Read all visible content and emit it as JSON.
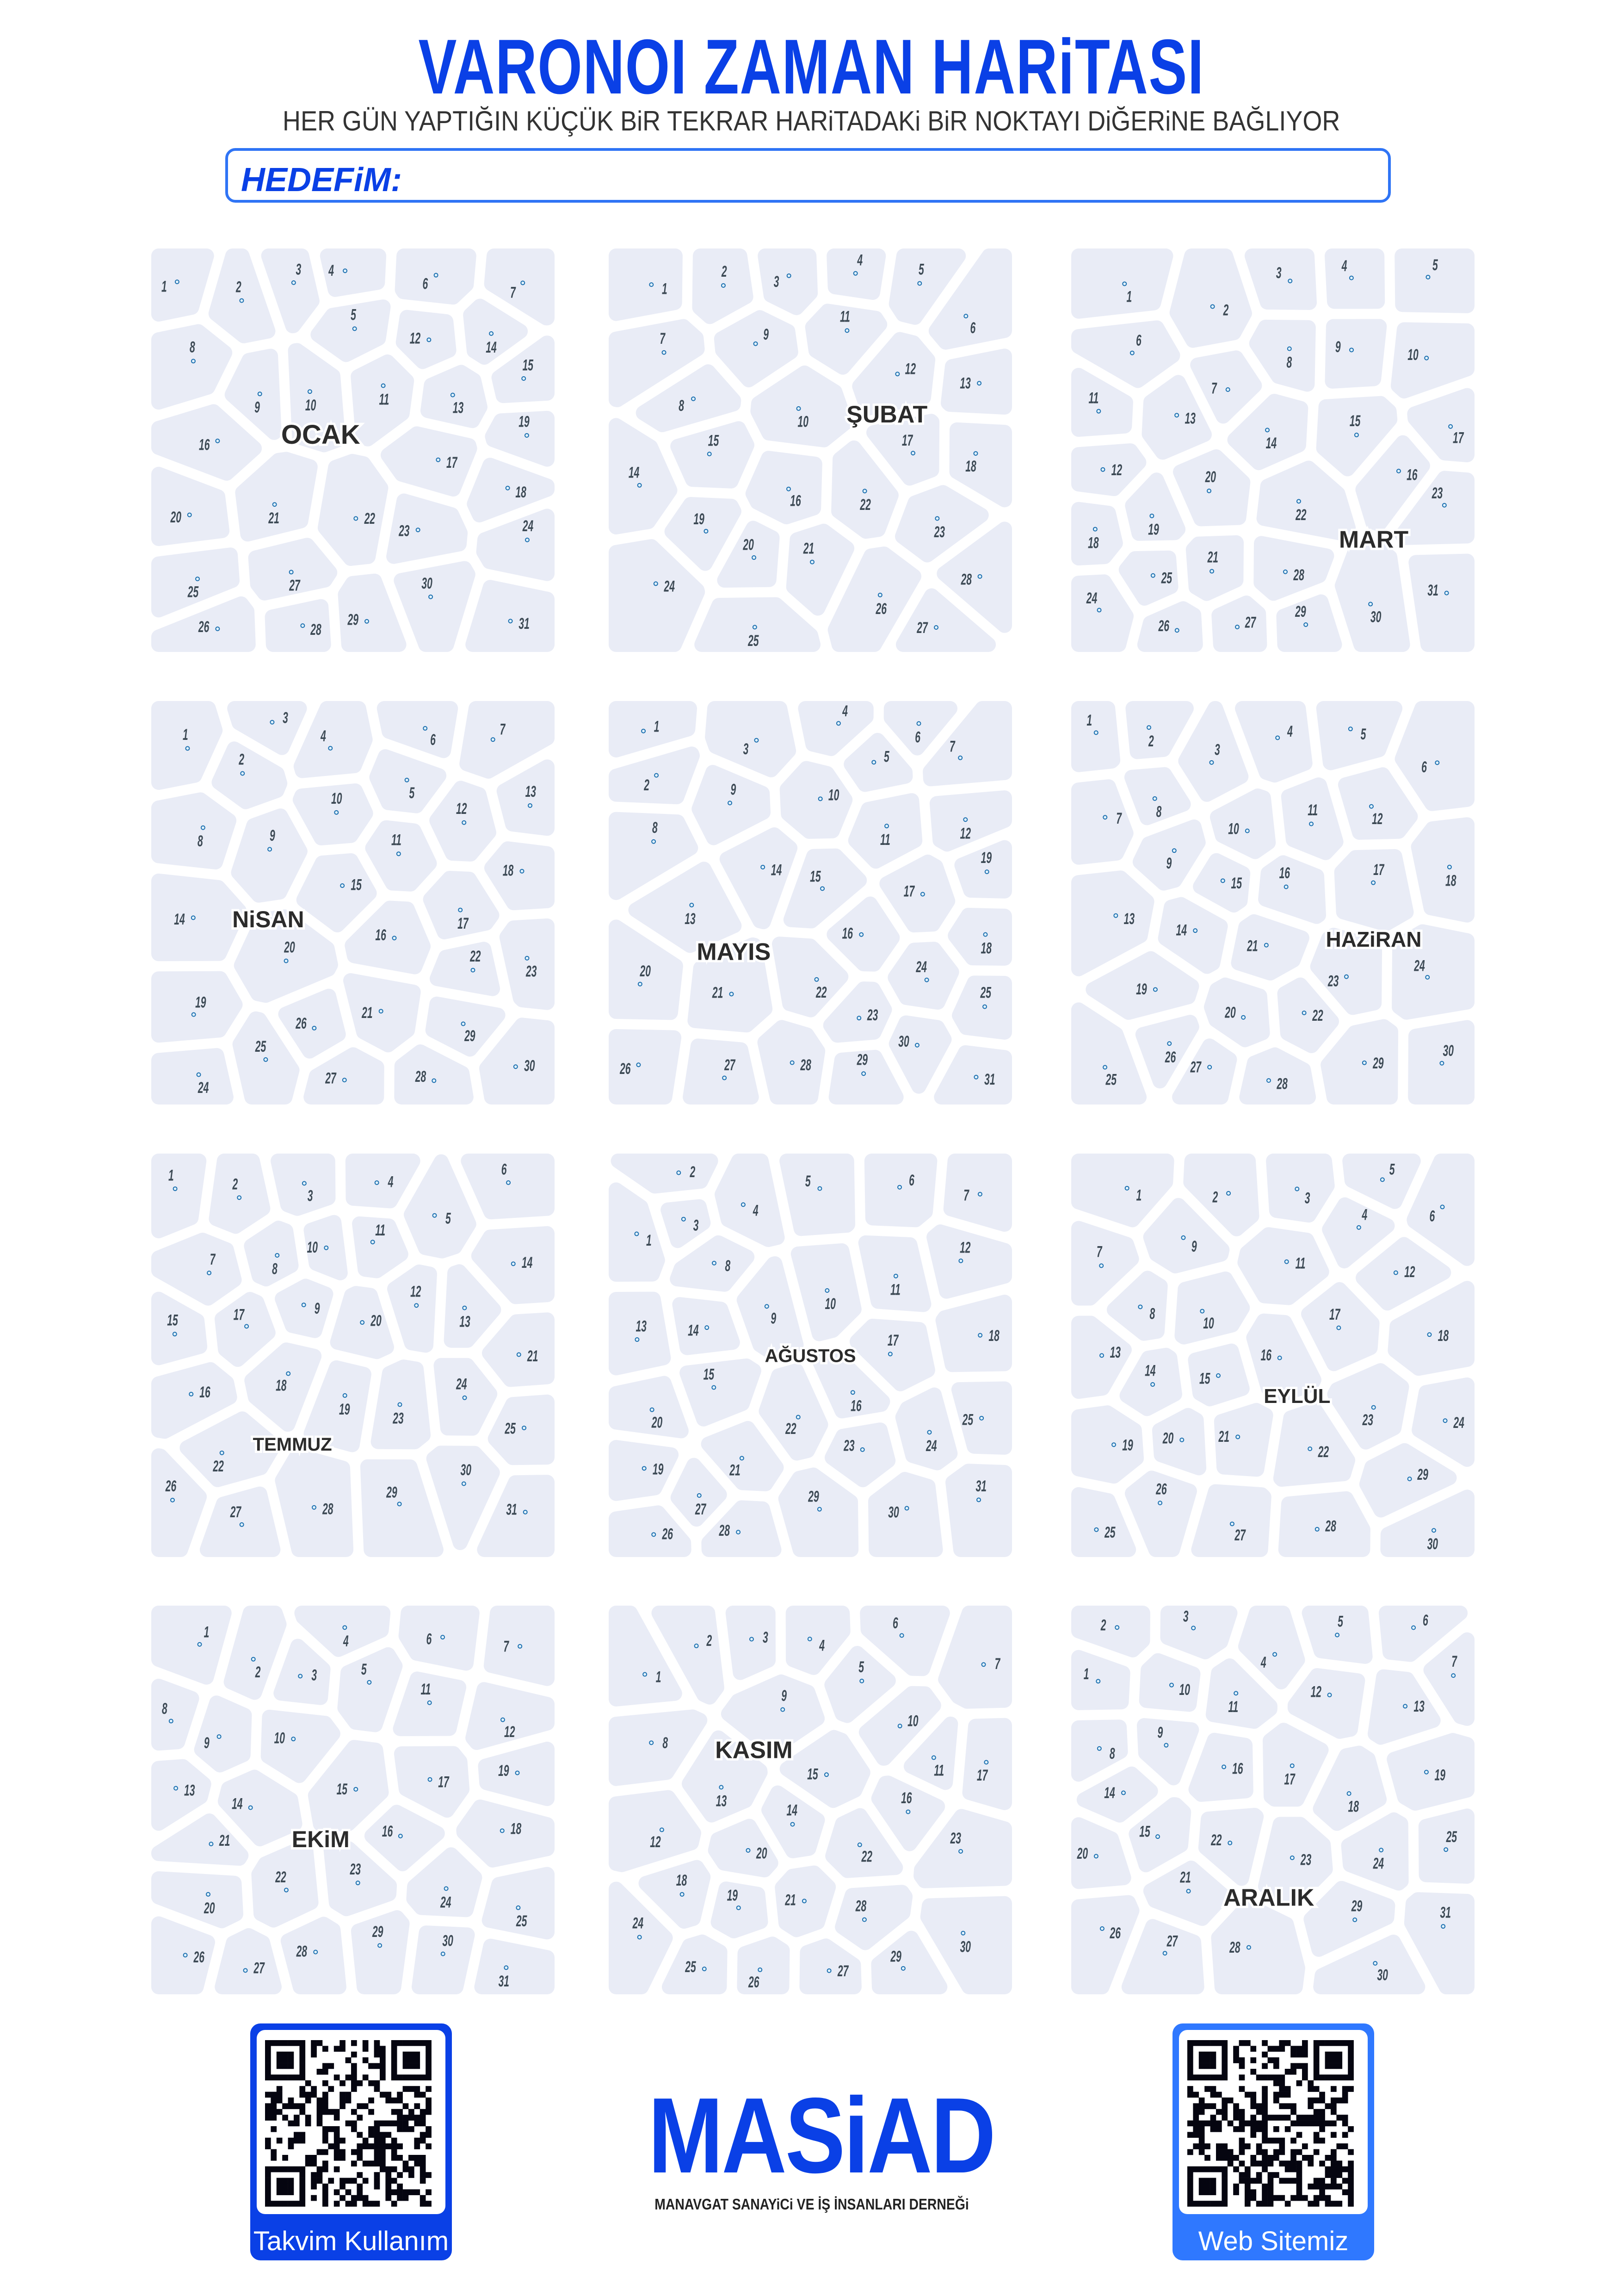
{
  "header": {
    "title": "VARONOI ZAMAN HARiTASI",
    "subtitle": "HER GÜN YAPTIĞIN KÜÇÜK BiR TEKRAR HARiTADAKi BiR NOKTAYI DiĞERiNE BAĞLIYOR",
    "goal_label": "HEDEFiM:"
  },
  "months": [
    {
      "name": "OCAK",
      "days": 31
    },
    {
      "name": "ŞUBAT",
      "days": 28
    },
    {
      "name": "MART",
      "days": 31
    },
    {
      "name": "NiSAN",
      "days": 30
    },
    {
      "name": "MAYIS",
      "days": 31
    },
    {
      "name": "HAZiRAN",
      "days": 30
    },
    {
      "name": "TEMMUZ",
      "days": 31
    },
    {
      "name": "AĞUSTOS",
      "days": 31
    },
    {
      "name": "EYLÜL",
      "days": 30
    },
    {
      "name": "EKiM",
      "days": 31
    },
    {
      "name": "KASIM",
      "days": 30
    },
    {
      "name": "ARALIK",
      "days": 31
    }
  ],
  "footer": {
    "qr_left_caption": "Takvim Kullanım",
    "qr_right_caption": "Web Sitemiz",
    "logo_name": "MASiAD",
    "logo_tagline": "MANAVGAT SANAYiCi VE İŞ İNSANLARI DERNEĞi"
  },
  "colors": {
    "brand_blue": "#0a40e6",
    "accent_blue": "#2f74f5",
    "cell_fill": "#e9ecf6",
    "dot_stroke": "#1c6fae",
    "number_text": "#3d4a55"
  }
}
